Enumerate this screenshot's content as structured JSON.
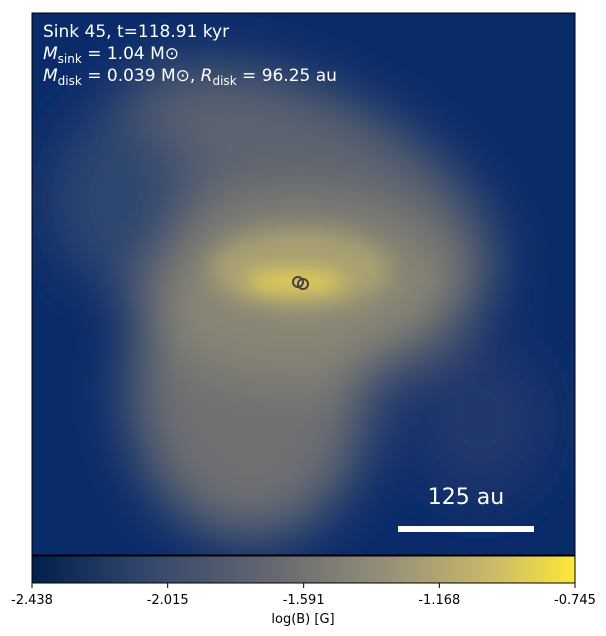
{
  "annotations": {
    "line1": "Sink 45, t=118.91 kyr",
    "line2": {
      "symbol": "M",
      "sub": "sink",
      "rest": " = 1.04 M⊙"
    },
    "line3": {
      "symbol": "M",
      "sub": "disk",
      "rest": " = 0.039 M⊙, ",
      "symbol2": "R",
      "sub2": "disk",
      "rest2": " = 96.25 au"
    }
  },
  "scale_bar": {
    "label": "125 au"
  },
  "colorbar": {
    "label": "log(B) [G]",
    "lim": [
      -2.438,
      -0.745
    ],
    "ticks": [
      -2.438,
      -2.015,
      -1.591,
      -1.168,
      -0.745
    ]
  }
}
